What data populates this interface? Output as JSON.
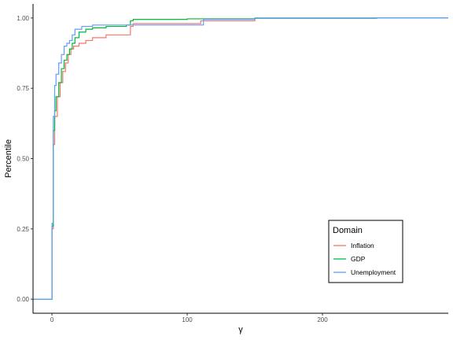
{
  "chart_data": {
    "type": "line",
    "step": true,
    "xlabel": "γ",
    "ylabel": "Percentile",
    "xlim": [
      -14,
      293
    ],
    "ylim": [
      -0.05,
      1.05
    ],
    "x_ticks": [
      0,
      100,
      200
    ],
    "x_tick_labels": [
      "0",
      "100",
      "200"
    ],
    "y_ticks": [
      0,
      0.25,
      0.5,
      0.75,
      1.0
    ],
    "y_tick_labels": [
      "0.00",
      "0.25",
      "0.50",
      "0.75",
      "1.00"
    ],
    "grid": false,
    "legend": {
      "title": "Domain",
      "position": "bottom-right"
    },
    "series": [
      {
        "name": "Inflation",
        "color": "#F8766D",
        "points": [
          [
            -14,
            0
          ],
          [
            0,
            0
          ],
          [
            0,
            0.25
          ],
          [
            1,
            0.55
          ],
          [
            2,
            0.65
          ],
          [
            4,
            0.72
          ],
          [
            6,
            0.77
          ],
          [
            8,
            0.81
          ],
          [
            10,
            0.84
          ],
          [
            12,
            0.87
          ],
          [
            14,
            0.89
          ],
          [
            16,
            0.9
          ],
          [
            20,
            0.91
          ],
          [
            25,
            0.92
          ],
          [
            30,
            0.93
          ],
          [
            40,
            0.94
          ],
          [
            50,
            0.94
          ],
          [
            57,
            0.94
          ],
          [
            58,
            0.97
          ],
          [
            60,
            0.98
          ],
          [
            70,
            0.98
          ],
          [
            80,
            0.98
          ],
          [
            110,
            0.99
          ],
          [
            150,
            1.0
          ],
          [
            293,
            1.0
          ]
        ]
      },
      {
        "name": "GDP",
        "color": "#00BA38",
        "points": [
          [
            -14,
            0
          ],
          [
            0,
            0
          ],
          [
            0,
            0.26
          ],
          [
            1,
            0.6
          ],
          [
            2,
            0.67
          ],
          [
            3,
            0.72
          ],
          [
            5,
            0.77
          ],
          [
            7,
            0.82
          ],
          [
            9,
            0.85
          ],
          [
            11,
            0.87
          ],
          [
            13,
            0.89
          ],
          [
            15,
            0.91
          ],
          [
            17,
            0.93
          ],
          [
            20,
            0.95
          ],
          [
            25,
            0.96
          ],
          [
            30,
            0.965
          ],
          [
            40,
            0.97
          ],
          [
            55,
            0.975
          ],
          [
            58,
            0.99
          ],
          [
            60,
            0.995
          ],
          [
            100,
            0.997
          ],
          [
            150,
            0.999
          ],
          [
            240,
            1.0
          ],
          [
            293,
            1.0
          ]
        ]
      },
      {
        "name": "Unemployment",
        "color": "#619CFF",
        "points": [
          [
            -14,
            0
          ],
          [
            0,
            0
          ],
          [
            0,
            0.27
          ],
          [
            1,
            0.65
          ],
          [
            2,
            0.76
          ],
          [
            3,
            0.8
          ],
          [
            5,
            0.84
          ],
          [
            7,
            0.87
          ],
          [
            9,
            0.9
          ],
          [
            11,
            0.91
          ],
          [
            13,
            0.92
          ],
          [
            15,
            0.94
          ],
          [
            17,
            0.96
          ],
          [
            22,
            0.97
          ],
          [
            30,
            0.975
          ],
          [
            50,
            0.975
          ],
          [
            80,
            0.975
          ],
          [
            108,
            0.975
          ],
          [
            112,
            0.995
          ],
          [
            150,
            1.0
          ],
          [
            293,
            1.0
          ]
        ]
      }
    ]
  }
}
